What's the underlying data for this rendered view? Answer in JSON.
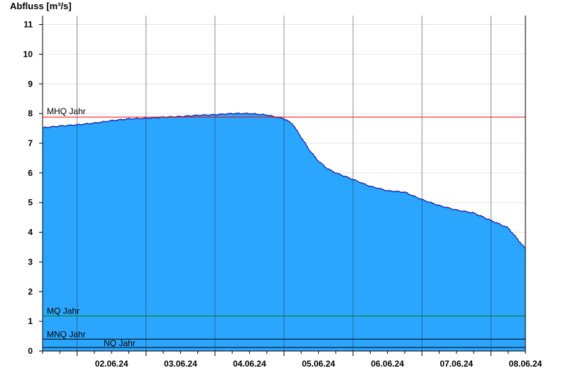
{
  "chart_data": {
    "type": "area",
    "ylabel": "Abfluss [m³/s]",
    "ylim": [
      0,
      11.3
    ],
    "yticks": [
      0,
      1,
      2,
      3,
      4,
      5,
      6,
      7,
      8,
      9,
      10,
      11
    ],
    "xlim": [
      "2024-06-01T12:00",
      "2024-06-08T12:00"
    ],
    "xtick_labels": [
      "02.06.24",
      "03.06.24",
      "04.06.24",
      "05.06.24",
      "06.06.24",
      "07.06.24",
      "08.06.24"
    ],
    "day_boundaries": [
      "2024-06-02T00:00",
      "2024-06-03T00:00",
      "2024-06-04T00:00",
      "2024-06-05T00:00",
      "2024-06-06T00:00",
      "2024-06-07T00:00",
      "2024-06-08T00:00"
    ],
    "grid": true,
    "fill_color": "#2ba6ff",
    "line_color": "#0000a0",
    "series": [
      {
        "x": [
          "2024-06-01T12:00",
          "2024-06-01T18:00",
          "2024-06-02T00:00",
          "2024-06-02T06:00",
          "2024-06-02T12:00",
          "2024-06-02T18:00",
          "2024-06-03T00:00",
          "2024-06-03T06:00",
          "2024-06-03T12:00",
          "2024-06-03T18:00",
          "2024-06-04T00:00",
          "2024-06-04T06:00",
          "2024-06-04T12:00",
          "2024-06-04T18:00",
          "2024-06-05T00:00",
          "2024-06-05T03:00",
          "2024-06-05T06:00",
          "2024-06-05T09:00",
          "2024-06-05T12:00",
          "2024-06-05T15:00",
          "2024-06-05T18:00",
          "2024-06-06T00:00",
          "2024-06-06T06:00",
          "2024-06-06T12:00",
          "2024-06-06T18:00",
          "2024-06-07T00:00",
          "2024-06-07T06:00",
          "2024-06-07T12:00",
          "2024-06-07T18:00",
          "2024-06-08T00:00",
          "2024-06-08T06:00",
          "2024-06-08T12:00"
        ],
        "y": [
          7.52,
          7.58,
          7.62,
          7.68,
          7.76,
          7.82,
          7.84,
          7.88,
          7.9,
          7.94,
          7.96,
          8.0,
          8.0,
          7.95,
          7.83,
          7.65,
          7.2,
          6.75,
          6.4,
          6.15,
          6.0,
          5.78,
          5.55,
          5.4,
          5.35,
          5.1,
          4.9,
          4.75,
          4.65,
          4.4,
          4.15,
          3.45
        ]
      }
    ],
    "reference_lines": [
      {
        "label": "MHQ Jahr",
        "value": 7.88,
        "color": "#ff0000"
      },
      {
        "label": "MQ Jahr",
        "value": 1.18,
        "color": "#008000"
      },
      {
        "label": "MNQ Jahr",
        "value": 0.4,
        "color": "#000000"
      },
      {
        "label": "NQ Jahr",
        "value": 0.12,
        "color": "#000000"
      }
    ]
  }
}
